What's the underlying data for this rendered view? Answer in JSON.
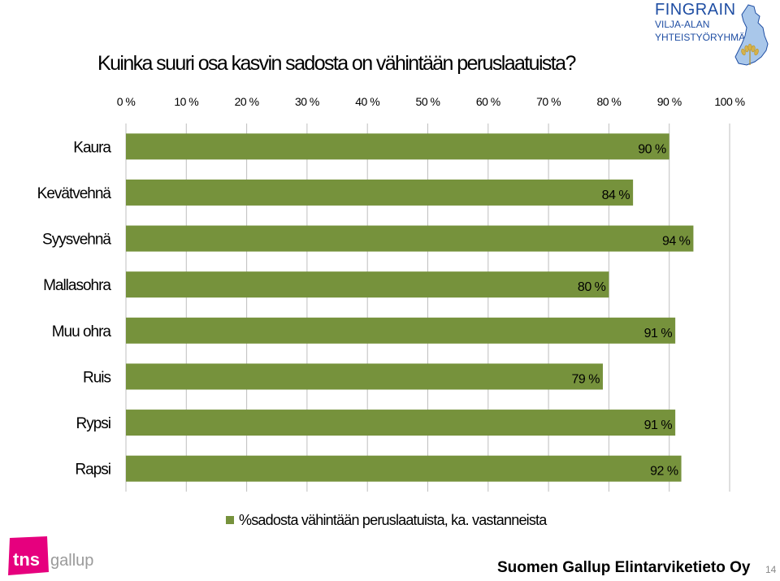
{
  "title": "Kuinka suuri osa kasvin sadosta on vähintään peruslaatuista?",
  "brand": {
    "line1": "FINGRAIN",
    "line2": "VILJA-ALAN",
    "line3": "YHTEISTYÖRYHMÄ"
  },
  "colors": {
    "bar": "#76923c",
    "grid": "#bfbfbf",
    "brand": "#1f4ea3",
    "tns": "#e6007e"
  },
  "chart_data": {
    "type": "bar",
    "orientation": "horizontal",
    "title": "Kuinka suuri osa kasvin sadosta on vähintään peruslaatuista?",
    "categories": [
      "Kaura",
      "Kevätvehnä",
      "Syysvehnä",
      "Mallasohra",
      "Muu ohra",
      "Ruis",
      "Rypsi",
      "Rapsi"
    ],
    "series": [
      {
        "name": "%sadosta vähintään peruslaatuista, ka. vastanneista",
        "values": [
          90,
          84,
          94,
          80,
          91,
          79,
          91,
          92
        ]
      }
    ],
    "value_labels": [
      "90 %",
      "84 %",
      "94 %",
      "80 %",
      "91 %",
      "79 %",
      "91 %",
      "92 %"
    ],
    "xlim": [
      0,
      100
    ],
    "xticks": [
      "0 %",
      "10 %",
      "20 %",
      "30 %",
      "40 %",
      "50 %",
      "60 %",
      "70 %",
      "80 %",
      "90 %",
      "100 %"
    ],
    "grid": true,
    "axis_position": "top",
    "legend_position": "bottom"
  },
  "legend_label": "%sadosta vähintään peruslaatuista, ka. vastanneista",
  "logo": {
    "tns": "tns",
    "gallup": "gallup",
    "icon": "tns-gallup-logo"
  },
  "footer": "Suomen Gallup Elintarviketieto Oy",
  "page_number": "14"
}
